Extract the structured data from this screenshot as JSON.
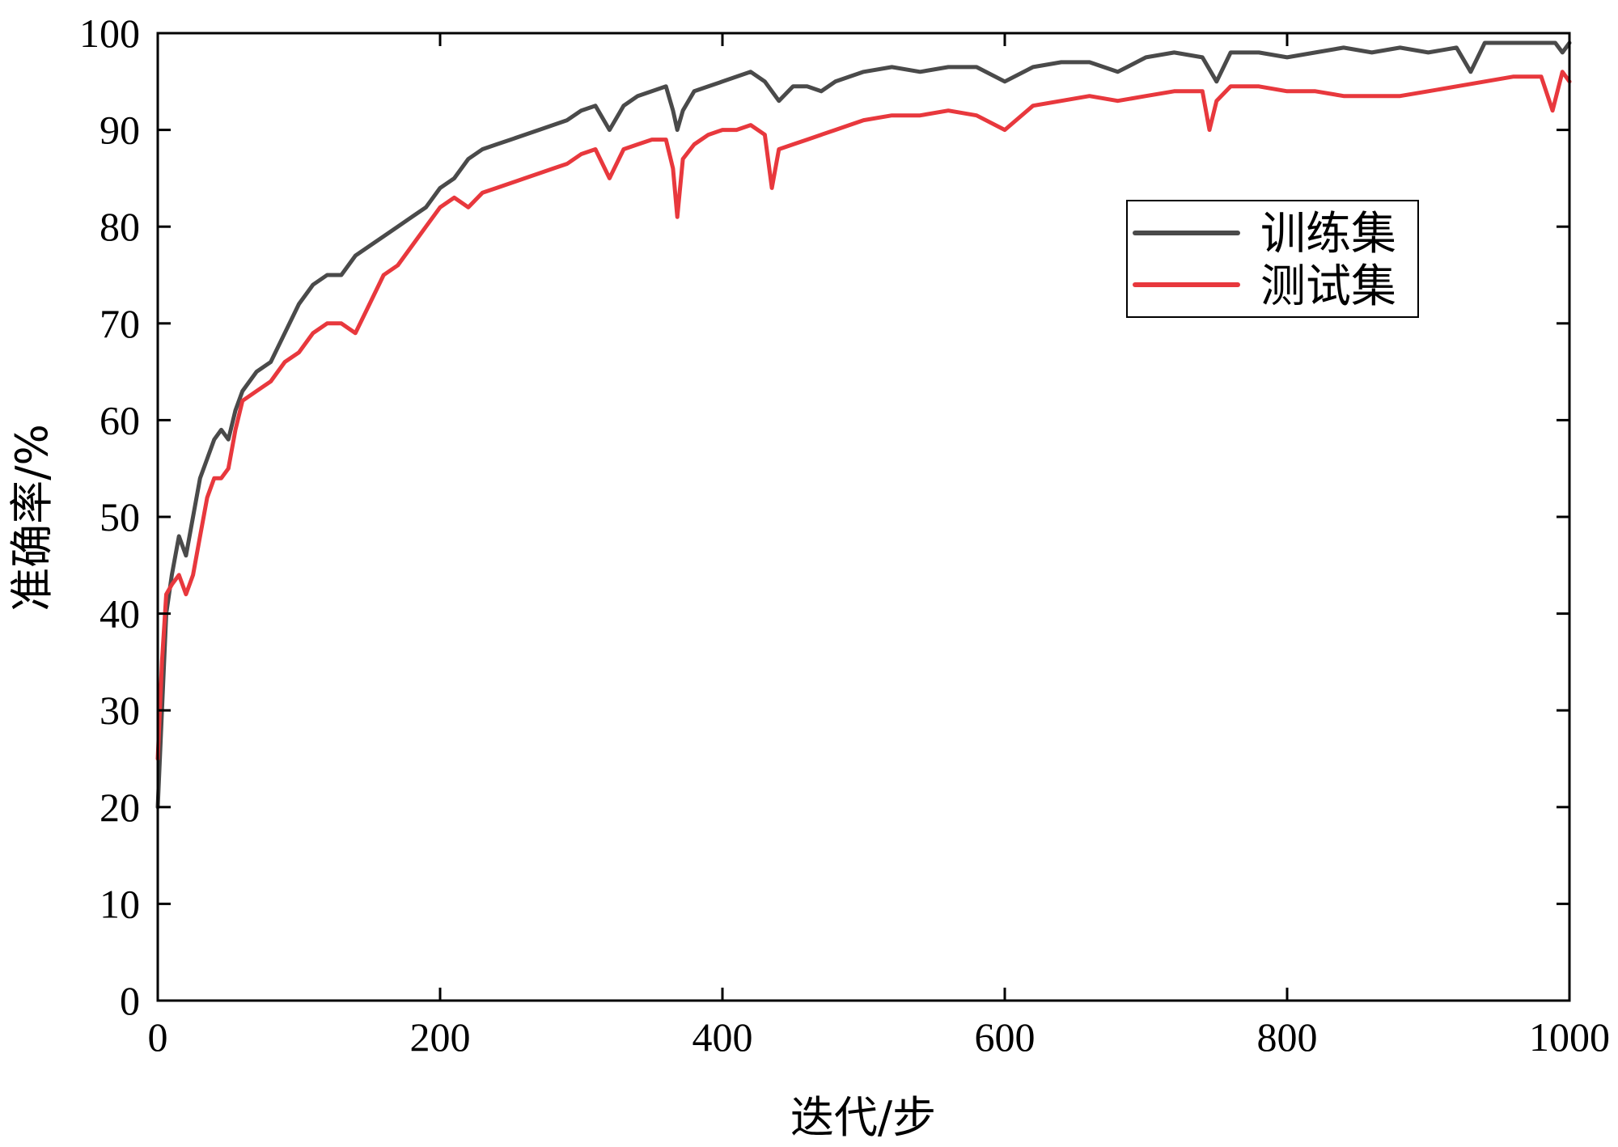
{
  "chart_data": {
    "type": "line",
    "xlabel": "迭代/步",
    "ylabel": "准确率/%",
    "xlim": [
      0,
      1000
    ],
    "ylim": [
      0,
      100
    ],
    "xticks": [
      0,
      200,
      400,
      600,
      800,
      1000
    ],
    "yticks": [
      0,
      10,
      20,
      30,
      40,
      50,
      60,
      70,
      80,
      90,
      100
    ],
    "legend_position": "upper-right",
    "grid": false,
    "series": [
      {
        "name": "训练集",
        "color": "#4a4a4a",
        "x": [
          0,
          3,
          6,
          10,
          15,
          20,
          25,
          30,
          35,
          40,
          45,
          50,
          55,
          60,
          70,
          80,
          90,
          100,
          110,
          120,
          130,
          140,
          150,
          160,
          170,
          180,
          190,
          200,
          210,
          220,
          230,
          240,
          250,
          260,
          270,
          280,
          290,
          300,
          310,
          320,
          330,
          340,
          350,
          360,
          365,
          368,
          372,
          380,
          390,
          400,
          410,
          420,
          430,
          440,
          450,
          460,
          470,
          480,
          490,
          500,
          520,
          540,
          560,
          580,
          600,
          620,
          640,
          660,
          680,
          700,
          720,
          740,
          750,
          760,
          780,
          800,
          820,
          840,
          860,
          880,
          900,
          920,
          930,
          940,
          960,
          980,
          990,
          995,
          1000
        ],
        "y": [
          20,
          30,
          40,
          44,
          48,
          46,
          50,
          54,
          56,
          58,
          59,
          58,
          61,
          63,
          65,
          66,
          69,
          72,
          74,
          75,
          75,
          77,
          78,
          79,
          80,
          81,
          82,
          84,
          85,
          87,
          88,
          88.5,
          89,
          89.5,
          90,
          90.5,
          91,
          92,
          92.5,
          90,
          92.5,
          93.5,
          94,
          94.5,
          92,
          90,
          92,
          94,
          94.5,
          95,
          95.5,
          96,
          95,
          93,
          94.5,
          94.5,
          94,
          95,
          95.5,
          96,
          96.5,
          96,
          96.5,
          96.5,
          95,
          96.5,
          97,
          97,
          96,
          97.5,
          98,
          97.5,
          95,
          98,
          98,
          97.5,
          98,
          98.5,
          98,
          98.5,
          98,
          98.5,
          96,
          99,
          99,
          99,
          99,
          98,
          99
        ]
      },
      {
        "name": "测试集",
        "color": "#e8383d",
        "x": [
          0,
          3,
          6,
          10,
          15,
          20,
          25,
          30,
          35,
          40,
          45,
          50,
          55,
          60,
          70,
          80,
          90,
          100,
          110,
          120,
          130,
          140,
          150,
          160,
          170,
          180,
          190,
          200,
          210,
          220,
          230,
          240,
          250,
          260,
          270,
          280,
          290,
          300,
          310,
          320,
          330,
          340,
          350,
          360,
          365,
          368,
          372,
          380,
          390,
          400,
          410,
          420,
          430,
          435,
          440,
          450,
          460,
          470,
          480,
          490,
          500,
          520,
          540,
          560,
          580,
          600,
          620,
          640,
          660,
          680,
          700,
          720,
          740,
          745,
          750,
          760,
          780,
          800,
          820,
          840,
          860,
          880,
          900,
          920,
          940,
          960,
          980,
          988,
          995,
          1000
        ],
        "y": [
          25,
          35,
          42,
          43,
          44,
          42,
          44,
          48,
          52,
          54,
          54,
          55,
          59,
          62,
          63,
          64,
          66,
          67,
          69,
          70,
          70,
          69,
          72,
          75,
          76,
          78,
          80,
          82,
          83,
          82,
          83.5,
          84,
          84.5,
          85,
          85.5,
          86,
          86.5,
          87.5,
          88,
          85,
          88,
          88.5,
          89,
          89,
          86,
          81,
          87,
          88.5,
          89.5,
          90,
          90,
          90.5,
          89.5,
          84,
          88,
          88.5,
          89,
          89.5,
          90,
          90.5,
          91,
          91.5,
          91.5,
          92,
          91.5,
          90,
          92.5,
          93,
          93.5,
          93,
          93.5,
          94,
          94,
          90,
          93,
          94.5,
          94.5,
          94,
          94,
          93.5,
          93.5,
          93.5,
          94,
          94.5,
          95,
          95.5,
          95.5,
          92,
          96,
          95
        ]
      }
    ]
  }
}
